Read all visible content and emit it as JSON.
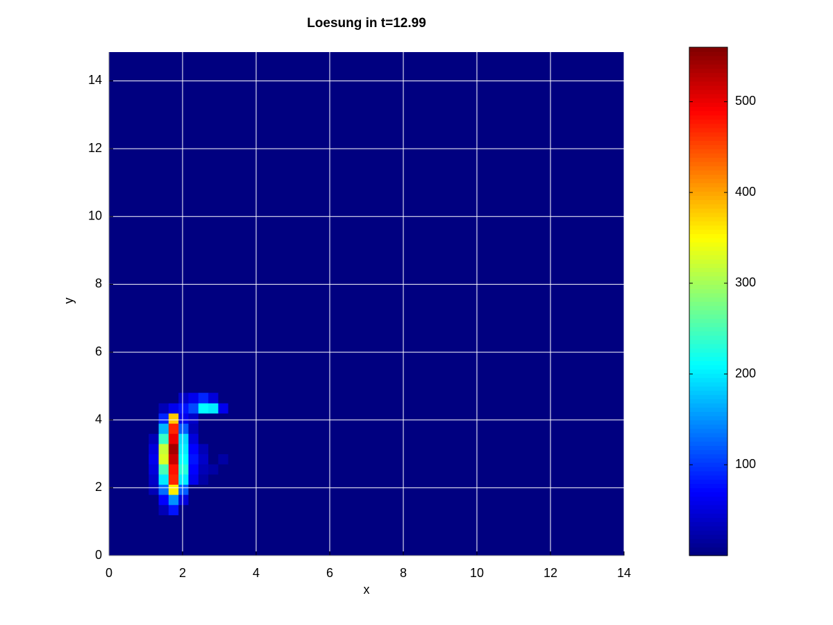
{
  "chart_data": {
    "type": "heatmap",
    "title": "Loesung in t=12.99",
    "x_label": "x",
    "y_label": "y",
    "colormap": "jet",
    "grid": true,
    "xlim": [
      0,
      14
    ],
    "ylim": [
      0,
      14.85
    ],
    "xticks": [
      0,
      2,
      4,
      6,
      8,
      10,
      12,
      14
    ],
    "yticks": [
      0,
      2,
      4,
      6,
      8,
      10,
      12,
      14
    ],
    "clim": [
      0,
      560
    ],
    "cticks": [
      100,
      200,
      300,
      400,
      500
    ],
    "x_edges": [
      0.54,
      0.81,
      1.08,
      1.35,
      1.62,
      1.89,
      2.16,
      2.43,
      2.7,
      2.97,
      3.24,
      3.51
    ],
    "y_edges": [
      1.2,
      1.5,
      1.8,
      2.1,
      2.4,
      2.7,
      3.0,
      3.3,
      3.6,
      3.9,
      4.2,
      4.5,
      4.8
    ],
    "z": [
      [
        0,
        0,
        0,
        30,
        80,
        0,
        0,
        0,
        0,
        0,
        0
      ],
      [
        0,
        0,
        0,
        70,
        150,
        50,
        0,
        0,
        0,
        0,
        0
      ],
      [
        0,
        0,
        30,
        130,
        360,
        120,
        0,
        0,
        0,
        0,
        0
      ],
      [
        0,
        0,
        40,
        200,
        470,
        200,
        60,
        20,
        0,
        0,
        0
      ],
      [
        0,
        0,
        50,
        250,
        480,
        230,
        70,
        30,
        20,
        0,
        0
      ],
      [
        0,
        0,
        60,
        330,
        520,
        210,
        80,
        40,
        0,
        20,
        0
      ],
      [
        0,
        0,
        50,
        320,
        540,
        200,
        70,
        30,
        0,
        0,
        0
      ],
      [
        0,
        0,
        30,
        240,
        500,
        190,
        50,
        0,
        0,
        0,
        0
      ],
      [
        0,
        0,
        0,
        170,
        470,
        120,
        30,
        0,
        0,
        0,
        0
      ],
      [
        0,
        0,
        0,
        90,
        380,
        60,
        40,
        0,
        0,
        0,
        0
      ],
      [
        0,
        0,
        0,
        30,
        60,
        80,
        110,
        210,
        200,
        60,
        0
      ],
      [
        0,
        0,
        0,
        0,
        0,
        40,
        60,
        90,
        50,
        0,
        0
      ]
    ]
  }
}
